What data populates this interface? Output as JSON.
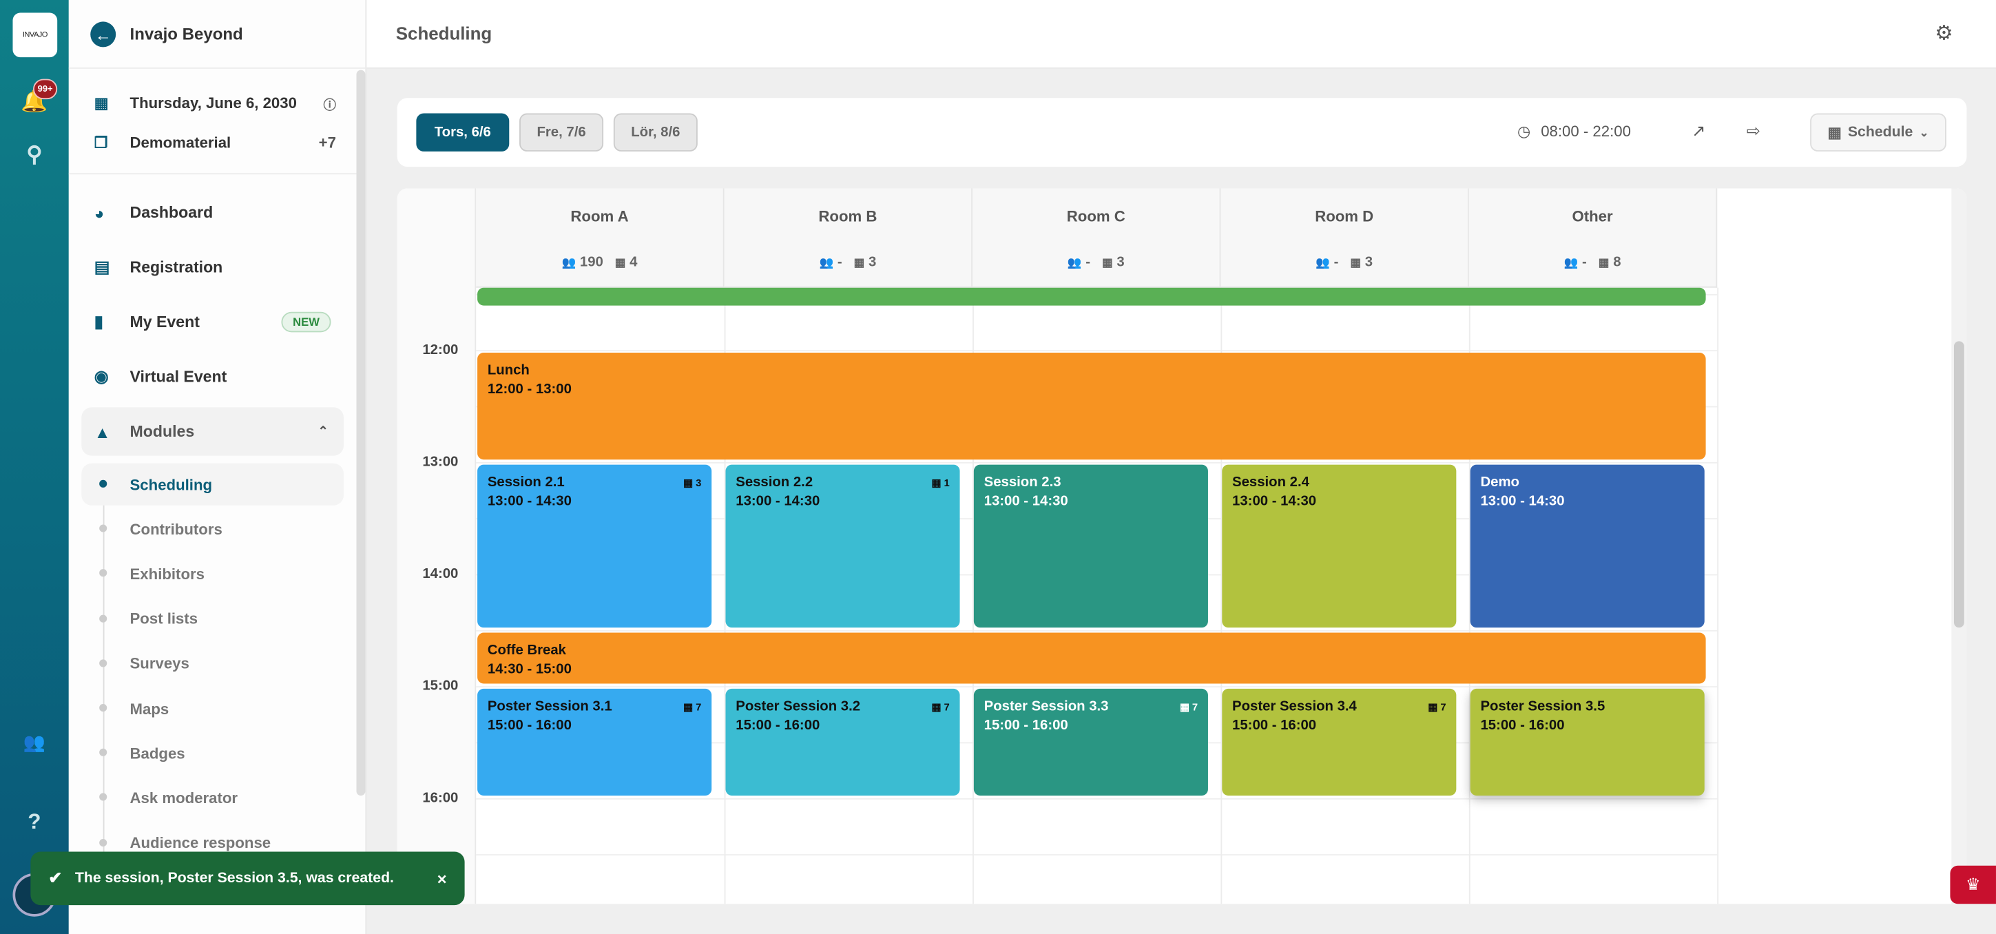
{
  "rail": {
    "logo": "INVAJO",
    "notification_count": "99+",
    "icons": [
      "bell-icon",
      "search-icon",
      "users-icon",
      "help-icon"
    ],
    "help": "?"
  },
  "sidebar": {
    "title": "Invajo Beyond",
    "date": "Thursday, June 6, 2030",
    "material": "Demomaterial",
    "material_extra": "+7",
    "nav": [
      {
        "label": "Dashboard",
        "icon": "gauge-icon"
      },
      {
        "label": "Registration",
        "icon": "clipboard-icon"
      },
      {
        "label": "My Event",
        "icon": "phone-icon",
        "badge": "NEW"
      },
      {
        "label": "Virtual Event",
        "icon": "webcam-icon"
      },
      {
        "label": "Modules",
        "icon": "shapes-icon"
      }
    ],
    "modules": [
      "Scheduling",
      "Contributors",
      "Exhibitors",
      "Post lists",
      "Surveys",
      "Maps",
      "Badges",
      "Ask moderator",
      "Audience response"
    ],
    "active_module": "Scheduling"
  },
  "header": {
    "title": "Scheduling"
  },
  "toolbar": {
    "days": [
      "Tors, 6/6",
      "Fre, 7/6",
      "Lör, 8/6"
    ],
    "active_day": 0,
    "time_range": "08:00 - 22:00",
    "view": "Schedule"
  },
  "calendar": {
    "rooms": [
      {
        "name": "Room A",
        "capacity": "190",
        "sessions": "4"
      },
      {
        "name": "Room B",
        "capacity": "-",
        "sessions": "3"
      },
      {
        "name": "Room C",
        "capacity": "-",
        "sessions": "3"
      },
      {
        "name": "Room D",
        "capacity": "-",
        "sessions": "3"
      },
      {
        "name": "Other",
        "capacity": "-",
        "sessions": "8"
      }
    ],
    "hours": [
      "12:00",
      "13:00",
      "14:00",
      "15:00",
      "16:00"
    ],
    "colors": {
      "blue": "#36aaf0",
      "cyan": "#3bbcd2",
      "teal": "#2a9683",
      "lime": "#b2c23e",
      "navy": "#3667b4",
      "orange": "#f79321",
      "green": "#5ab055"
    },
    "events": [
      {
        "title": "",
        "time": "",
        "start": "11:00",
        "end": "11:33",
        "room": 0,
        "span": 5,
        "color": "green"
      },
      {
        "title": "Lunch",
        "time": "12:00 - 13:00",
        "start": "12:00",
        "end": "13:00",
        "room": 0,
        "span": 5,
        "color": "orange"
      },
      {
        "title": "Session 2.1",
        "time": "13:00 - 14:30",
        "start": "13:00",
        "end": "14:30",
        "room": 0,
        "span": 1,
        "color": "blue",
        "count": "3"
      },
      {
        "title": "Session 2.2",
        "time": "13:00 - 14:30",
        "start": "13:00",
        "end": "14:30",
        "room": 1,
        "span": 1,
        "color": "cyan",
        "count": "1"
      },
      {
        "title": "Session 2.3",
        "time": "13:00 - 14:30",
        "start": "13:00",
        "end": "14:30",
        "room": 2,
        "span": 1,
        "color": "teal"
      },
      {
        "title": "Session 2.4",
        "time": "13:00 - 14:30",
        "start": "13:00",
        "end": "14:30",
        "room": 3,
        "span": 1,
        "color": "lime"
      },
      {
        "title": "Demo",
        "time": "13:00 - 14:30",
        "start": "13:00",
        "end": "14:30",
        "room": 4,
        "span": 1,
        "color": "navy"
      },
      {
        "title": "Coffe Break",
        "time": "14:30 - 15:00",
        "start": "14:30",
        "end": "15:00",
        "room": 0,
        "span": 5,
        "color": "orange"
      },
      {
        "title": "Poster Session 3.1",
        "time": "15:00 - 16:00",
        "start": "15:00",
        "end": "16:00",
        "room": 0,
        "span": 1,
        "color": "blue",
        "count": "7"
      },
      {
        "title": "Poster Session 3.2",
        "time": "15:00 - 16:00",
        "start": "15:00",
        "end": "16:00",
        "room": 1,
        "span": 1,
        "color": "cyan",
        "count": "7"
      },
      {
        "title": "Poster Session 3.3",
        "time": "15:00 - 16:00",
        "start": "15:00",
        "end": "16:00",
        "room": 2,
        "span": 1,
        "color": "teal",
        "count": "7"
      },
      {
        "title": "Poster Session 3.4",
        "time": "15:00 - 16:00",
        "start": "15:00",
        "end": "16:00",
        "room": 3,
        "span": 1,
        "color": "lime",
        "count": "7"
      },
      {
        "title": "Poster Session 3.5",
        "time": "15:00 - 16:00",
        "start": "15:00",
        "end": "16:00",
        "room": 4,
        "span": 1,
        "color": "lime"
      }
    ]
  },
  "toast": {
    "message": "The session, Poster Session 3.5, was created.",
    "close": "×"
  }
}
